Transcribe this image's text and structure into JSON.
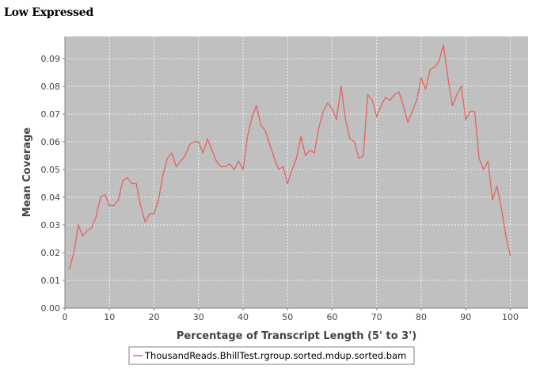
{
  "page": {
    "heading": "Low Expressed"
  },
  "colors": {
    "plot_background": "#c0c0c0",
    "gridline": "#ffffff",
    "series_line": "#e8615f",
    "axis": "#808080",
    "text": "#444444"
  },
  "chart_data": {
    "type": "line",
    "title": "",
    "xlabel": "Percentage of Transcript Length (5' to 3')",
    "ylabel": "Mean Coverage",
    "xlim": [
      0,
      104
    ],
    "ylim": [
      0,
      0.098
    ],
    "xticks": [
      0,
      10,
      20,
      30,
      40,
      50,
      60,
      70,
      80,
      90,
      100
    ],
    "yticks": [
      "0.00",
      "0.01",
      "0.02",
      "0.03",
      "0.04",
      "0.05",
      "0.06",
      "0.07",
      "0.08",
      "0.09"
    ],
    "grid": true,
    "legend_position": "bottom-center",
    "series": [
      {
        "name": "ThousandReads.BhillTest.rgroup.sorted.mdup.sorted.bam",
        "x": [
          1,
          2,
          3,
          4,
          5,
          6,
          7,
          8,
          9,
          10,
          11,
          12,
          13,
          14,
          15,
          16,
          17,
          18,
          19,
          20,
          21,
          22,
          23,
          24,
          25,
          26,
          27,
          28,
          29,
          30,
          31,
          32,
          33,
          34,
          35,
          36,
          37,
          38,
          39,
          40,
          41,
          42,
          43,
          44,
          45,
          46,
          47,
          48,
          49,
          50,
          51,
          52,
          53,
          54,
          55,
          56,
          57,
          58,
          59,
          60,
          61,
          62,
          63,
          64,
          65,
          66,
          67,
          68,
          69,
          70,
          71,
          72,
          73,
          74,
          75,
          76,
          77,
          78,
          79,
          80,
          81,
          82,
          83,
          84,
          85,
          86,
          87,
          88,
          89,
          90,
          91,
          92,
          93,
          94,
          95,
          96,
          97,
          98,
          99,
          100
        ],
        "values": [
          0.014,
          0.02,
          0.03,
          0.026,
          0.028,
          0.029,
          0.033,
          0.04,
          0.041,
          0.037,
          0.037,
          0.039,
          0.046,
          0.047,
          0.045,
          0.045,
          0.037,
          0.031,
          0.034,
          0.034,
          0.039,
          0.048,
          0.054,
          0.056,
          0.051,
          0.053,
          0.055,
          0.059,
          0.06,
          0.06,
          0.056,
          0.061,
          0.057,
          0.053,
          0.051,
          0.051,
          0.052,
          0.05,
          0.053,
          0.05,
          0.062,
          0.069,
          0.073,
          0.066,
          0.064,
          0.059,
          0.054,
          0.05,
          0.051,
          0.045,
          0.05,
          0.054,
          0.062,
          0.055,
          0.057,
          0.056,
          0.065,
          0.071,
          0.074,
          0.072,
          0.068,
          0.08,
          0.068,
          0.061,
          0.06,
          0.054,
          0.055,
          0.077,
          0.075,
          0.069,
          0.073,
          0.076,
          0.075,
          0.077,
          0.078,
          0.073,
          0.067,
          0.071,
          0.075,
          0.083,
          0.079,
          0.086,
          0.087,
          0.089,
          0.095,
          0.083,
          0.073,
          0.077,
          0.08,
          0.068,
          0.071,
          0.071,
          0.054,
          0.05,
          0.053,
          0.039,
          0.044,
          0.036,
          0.026,
          0.019
        ]
      }
    ]
  }
}
